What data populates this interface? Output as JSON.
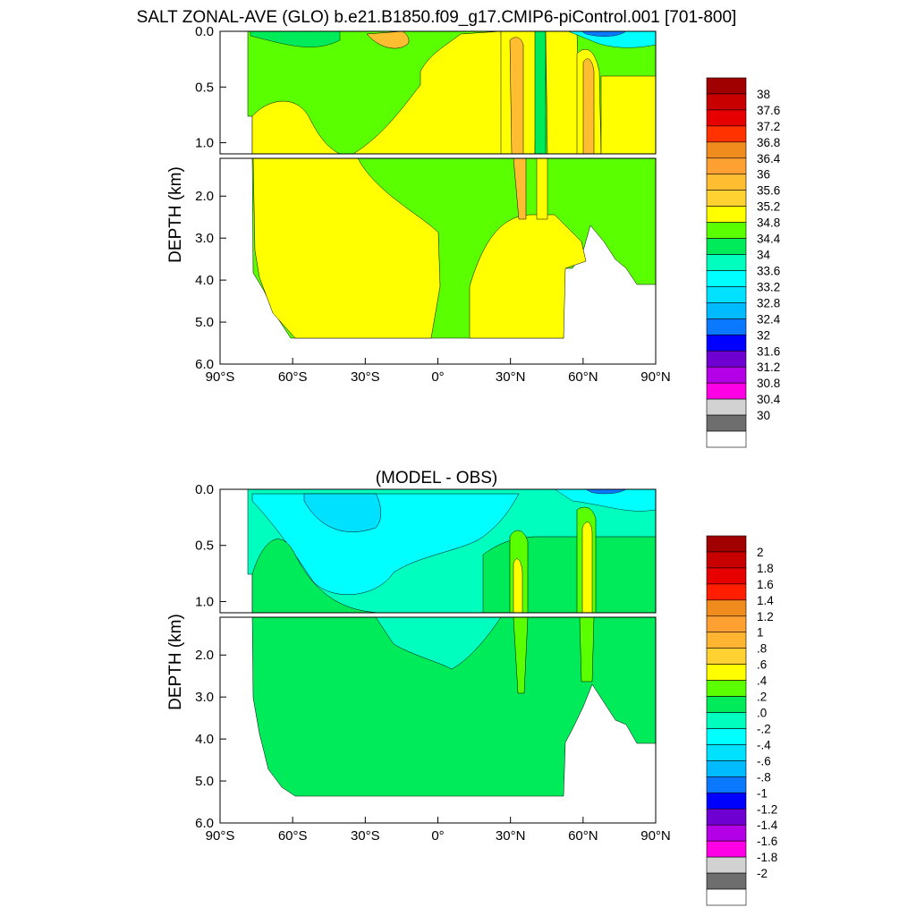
{
  "chart_data": [
    {
      "type": "contour",
      "title": "SALT ZONAL-AVE (GLO) b.e21.B1850.f09_g17.CMIP6-piControl.001 [701-800]",
      "ylabel": "DEPTH (km)",
      "x_ticks": [
        "90°S",
        "60°S",
        "30°S",
        "0°",
        "30°N",
        "60°N",
        "90°N"
      ],
      "x_tick_values": [
        -90,
        -60,
        -30,
        0,
        30,
        60,
        90
      ],
      "y_ticks": [
        "0.0",
        "0.5",
        "1.0",
        "2.0",
        "3.0",
        "4.0",
        "5.0",
        "6.0"
      ],
      "y_tick_values": [
        0,
        0.5,
        1.0,
        2.0,
        3.0,
        4.0,
        5.0,
        6.0
      ],
      "xlim": [
        -90,
        90
      ],
      "ylim": [
        0,
        6
      ],
      "colorbar": {
        "labels": [
          "38",
          "37.6",
          "37.2",
          "36.8",
          "36.4",
          "36",
          "35.6",
          "35.2",
          "34.8",
          "34.4",
          "34",
          "33.6",
          "33.2",
          "32.8",
          "32.4",
          "32",
          "31.6",
          "31.2",
          "30.8",
          "30.4",
          "30"
        ],
        "colors": [
          "#a10000",
          "#c80000",
          "#e60000",
          "#ff3200",
          "#f08c1e",
          "#ffa032",
          "#ffbe32",
          "#ffd232",
          "#ffff00",
          "#5aff00",
          "#00eb5a",
          "#00ffbe",
          "#00ffff",
          "#00e1ff",
          "#00bbff",
          "#0a78ff",
          "#0000ff",
          "#6e00d2",
          "#b400e6",
          "#ff00e6",
          "#d2d2d2",
          "#6e6e6e",
          "#ffffff"
        ]
      },
      "approx_zonal_profile": [
        {
          "lat": -30,
          "surface": 34.6,
          "intermediate": 34.3,
          "deep": 34.8
        },
        {
          "lat": 0,
          "surface": 34.8,
          "intermediate": 34.6,
          "deep": 34.8
        },
        {
          "lat": 35,
          "surface": 35.4,
          "intermediate": 35.4,
          "deep": 34.8
        },
        {
          "lat": 62,
          "surface": 35.0,
          "intermediate": 35.0,
          "deep": 34.9
        }
      ]
    },
    {
      "type": "contour",
      "title": "(MODEL - OBS)",
      "ylabel": "DEPTH (km)",
      "x_ticks": [
        "90°S",
        "60°S",
        "30°S",
        "0°",
        "30°N",
        "60°N",
        "90°N"
      ],
      "x_tick_values": [
        -90,
        -60,
        -30,
        0,
        30,
        60,
        90
      ],
      "y_ticks": [
        "0.0",
        "0.5",
        "1.0",
        "2.0",
        "3.0",
        "4.0",
        "5.0",
        "6.0"
      ],
      "y_tick_values": [
        0,
        0.5,
        1.0,
        2.0,
        3.0,
        4.0,
        5.0,
        6.0
      ],
      "xlim": [
        -90,
        90
      ],
      "ylim": [
        0,
        6
      ],
      "colorbar": {
        "labels": [
          "2",
          "1.8",
          "1.6",
          "1.4",
          "1.2",
          "1",
          ".8",
          ".6",
          ".4",
          ".2",
          ".0",
          "-.2",
          "-.4",
          "-.6",
          "-.8",
          "-1",
          "-1.2",
          "-1.4",
          "-1.6",
          "-1.8",
          "-2"
        ],
        "colors": [
          "#a10000",
          "#c80000",
          "#e60000",
          "#ff1e00",
          "#f08c1e",
          "#ffa032",
          "#ffb432",
          "#ffd232",
          "#ffff00",
          "#5aff00",
          "#00eb5a",
          "#00ffbe",
          "#00ffff",
          "#00e1ff",
          "#00bbff",
          "#0a78ff",
          "#0000ff",
          "#6e00d2",
          "#b400e6",
          "#ff00e6",
          "#d2d2d2",
          "#6e6e6e",
          "#ffffff"
        ]
      },
      "approx_zonal_profile": [
        {
          "lat": -30,
          "surface": -0.3,
          "intermediate": -0.3,
          "deep": 0.0
        },
        {
          "lat": 0,
          "surface": -0.2,
          "intermediate": -0.1,
          "deep": 0.0
        },
        {
          "lat": 35,
          "surface": 0.2,
          "intermediate": 0.4,
          "deep": 0.1
        },
        {
          "lat": 62,
          "surface": 0.3,
          "intermediate": 0.5,
          "deep": 0.1
        }
      ]
    }
  ]
}
